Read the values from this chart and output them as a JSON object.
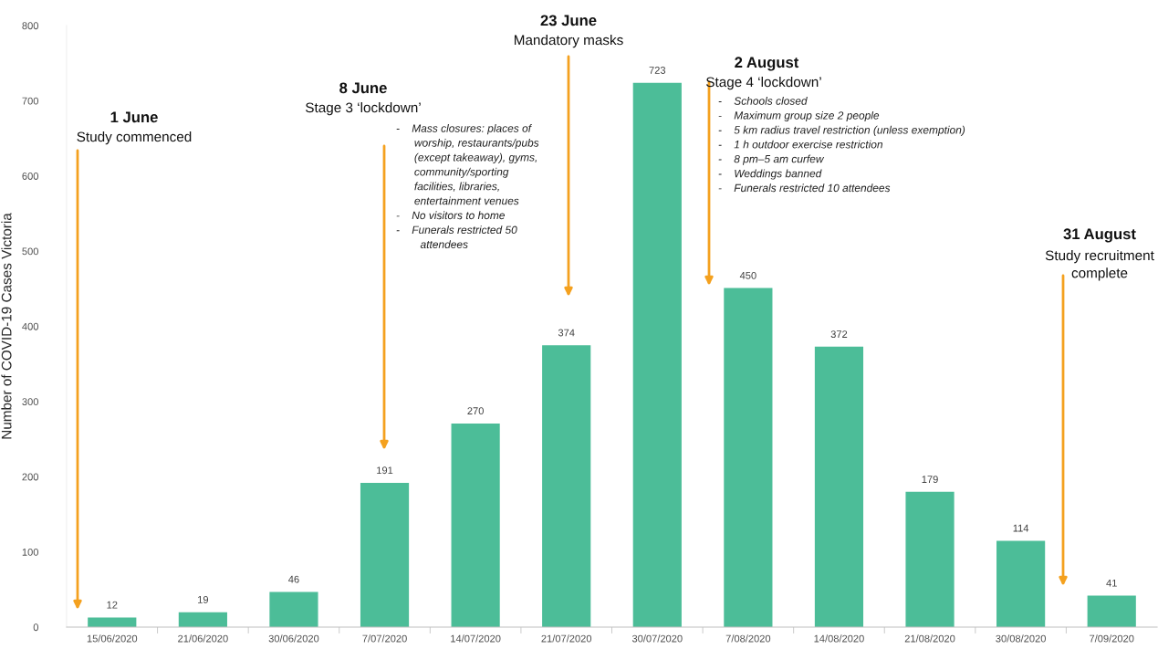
{
  "chart_data": {
    "type": "bar",
    "ylabel": "Number of COVID-19 Cases Victoria",
    "categories": [
      "15/06/2020",
      "21/06/2020",
      "30/06/2020",
      "7/07/2020",
      "14/07/2020",
      "21/07/2020",
      "30/07/2020",
      "7/08/2020",
      "14/08/2020",
      "21/08/2020",
      "30/08/2020",
      "7/09/2020"
    ],
    "values": [
      12,
      19,
      46,
      191,
      270,
      374,
      723,
      450,
      372,
      179,
      114,
      41
    ],
    "color": "#4cbd98",
    "ylim": [
      0,
      800
    ],
    "yticks": [
      0,
      100,
      200,
      300,
      400,
      500,
      600,
      700,
      800
    ],
    "data_labels": true,
    "grid": false,
    "annotations": [
      "1 June",
      "Study commenced",
      "8 June",
      "Stage 3 ‘lockdown’",
      "-    Mass closures: places of\n      worship, restaurants/pubs\n      (except takeaway), gyms,\n      community/sporting\n      facilities, libraries,\n      entertainment venues\n-    No visitors to home\n-    Funerals restricted 50\n        attendees",
      "23 June",
      "Mandatory masks",
      "2 August",
      "Stage 4 ‘lockdown’",
      "-    Schools closed\n-    Maximum group size 2 people\n-    5 km radius travel restriction (unless exemption)\n-    1 h outdoor exercise restriction\n-    8 pm–5 am curfew\n-    Weddings banned\n-    Funerals restricted 10 attendees",
      "31 August",
      "Study recruitment\ncomplete"
    ]
  }
}
